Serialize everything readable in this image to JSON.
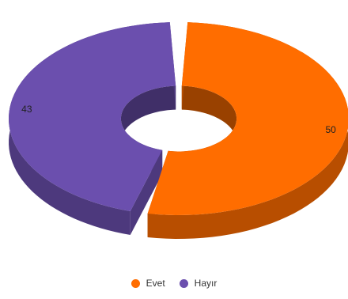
{
  "chart_data": {
    "type": "pie",
    "variant": "3d-donut",
    "series": [
      {
        "name": "Evet",
        "value": 50,
        "color": "#ff6d00"
      },
      {
        "name": "Hayır",
        "value": 43,
        "color": "#6b4fae"
      }
    ],
    "data_labels": [
      "50",
      "43"
    ],
    "legend_placement": "bottom"
  },
  "legend": {
    "items": [
      {
        "label": "Evet",
        "color": "#ff6d00"
      },
      {
        "label": "Hayır",
        "color": "#6b4fae"
      }
    ]
  }
}
